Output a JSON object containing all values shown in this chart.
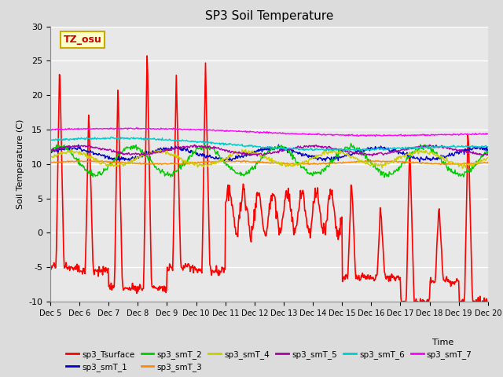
{
  "title": "SP3 Soil Temperature",
  "ylabel": "Soil Temperature (C)",
  "xlabel": "Time",
  "ylim": [
    -10,
    30
  ],
  "background_color": "#dcdcdc",
  "plot_bg_color": "#e8e8e8",
  "annotation_text": "TZ_osu",
  "annotation_bg": "#ffffcc",
  "annotation_border": "#ccaa00",
  "legend_entries": [
    "sp3_Tsurface",
    "sp3_smT_1",
    "sp3_smT_2",
    "sp3_smT_3",
    "sp3_smT_4",
    "sp3_smT_5",
    "sp3_smT_6",
    "sp3_smT_7"
  ],
  "line_colors": [
    "#ff0000",
    "#0000cc",
    "#00cc00",
    "#ff8800",
    "#cccc00",
    "#aa00aa",
    "#00cccc",
    "#ff00ff"
  ],
  "line_widths": [
    1.2,
    1.0,
    1.0,
    1.0,
    1.0,
    1.0,
    1.0,
    1.0
  ],
  "xtick_labels": [
    "Dec 5",
    "Dec 6",
    "Dec 7",
    "Dec 8",
    "Dec 9",
    "Dec 10",
    "Dec 11",
    "Dec 12",
    "Dec 13",
    "Dec 14",
    "Dec 15",
    "Dec 16",
    "Dec 17",
    "Dec 18",
    "Dec 19",
    "Dec 20"
  ],
  "ytick_labels": [
    "-10",
    "-5",
    "0",
    "5",
    "10",
    "15",
    "20",
    "25",
    "30"
  ],
  "ytick_values": [
    -10,
    -5,
    0,
    5,
    10,
    15,
    20,
    25,
    30
  ]
}
